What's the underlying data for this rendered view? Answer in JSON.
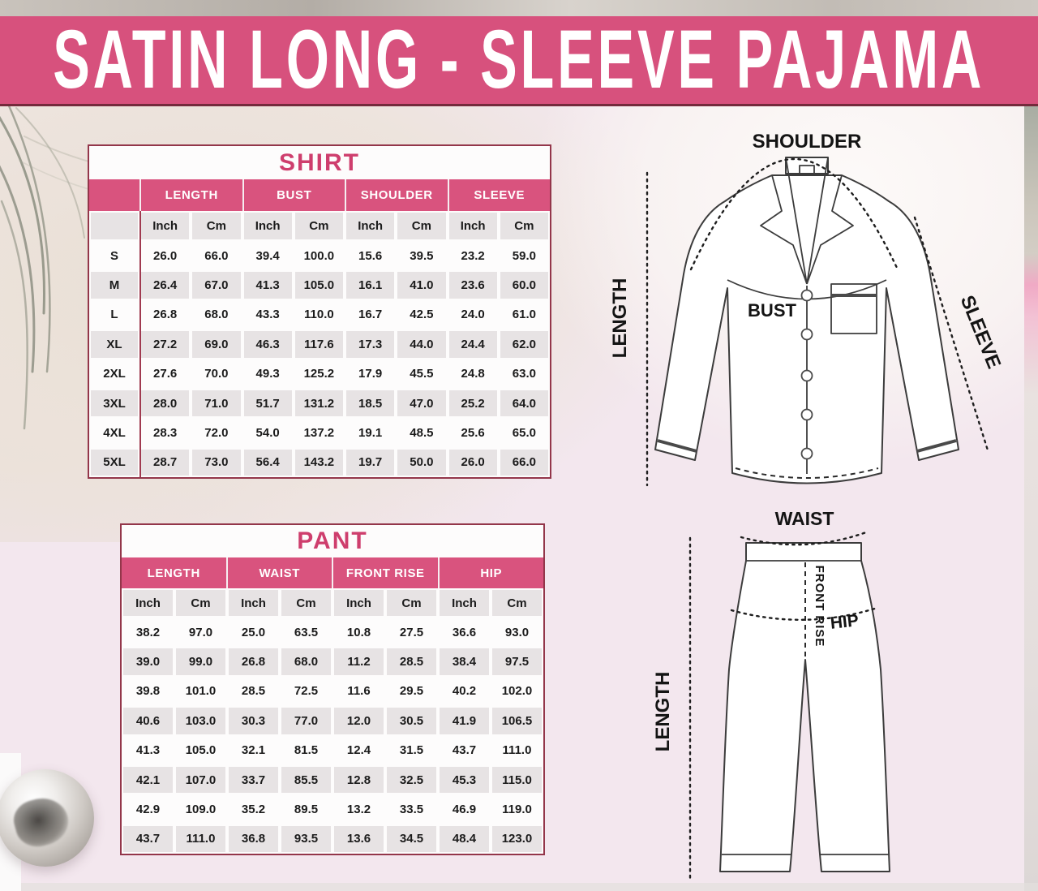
{
  "banner": {
    "title": "SATIN LONG - SLEEVE PAJAMA"
  },
  "shirt_table": {
    "title": "SHIRT",
    "groups": [
      "LENGTH",
      "BUST",
      "SHOULDER",
      "SLEEVE"
    ],
    "units": [
      "Inch",
      "Cm"
    ],
    "sizes": [
      "S",
      "M",
      "L",
      "XL",
      "2XL",
      "3XL",
      "4XL",
      "5XL"
    ],
    "rows": [
      [
        "26.0",
        "66.0",
        "39.4",
        "100.0",
        "15.6",
        "39.5",
        "23.2",
        "59.0"
      ],
      [
        "26.4",
        "67.0",
        "41.3",
        "105.0",
        "16.1",
        "41.0",
        "23.6",
        "60.0"
      ],
      [
        "26.8",
        "68.0",
        "43.3",
        "110.0",
        "16.7",
        "42.5",
        "24.0",
        "61.0"
      ],
      [
        "27.2",
        "69.0",
        "46.3",
        "117.6",
        "17.3",
        "44.0",
        "24.4",
        "62.0"
      ],
      [
        "27.6",
        "70.0",
        "49.3",
        "125.2",
        "17.9",
        "45.5",
        "24.8",
        "63.0"
      ],
      [
        "28.0",
        "71.0",
        "51.7",
        "131.2",
        "18.5",
        "47.0",
        "25.2",
        "64.0"
      ],
      [
        "28.3",
        "72.0",
        "54.0",
        "137.2",
        "19.1",
        "48.5",
        "25.6",
        "65.0"
      ],
      [
        "28.7",
        "73.0",
        "56.4",
        "143.2",
        "19.7",
        "50.0",
        "26.0",
        "66.0"
      ]
    ]
  },
  "pant_table": {
    "title": "PANT",
    "groups": [
      "LENGTH",
      "WAIST",
      "FRONT RISE",
      "HIP"
    ],
    "units": [
      "Inch",
      "Cm"
    ],
    "rows": [
      [
        "38.2",
        "97.0",
        "25.0",
        "63.5",
        "10.8",
        "27.5",
        "36.6",
        "93.0"
      ],
      [
        "39.0",
        "99.0",
        "26.8",
        "68.0",
        "11.2",
        "28.5",
        "38.4",
        "97.5"
      ],
      [
        "39.8",
        "101.0",
        "28.5",
        "72.5",
        "11.6",
        "29.5",
        "40.2",
        "102.0"
      ],
      [
        "40.6",
        "103.0",
        "30.3",
        "77.0",
        "12.0",
        "30.5",
        "41.9",
        "106.5"
      ],
      [
        "41.3",
        "105.0",
        "32.1",
        "81.5",
        "12.4",
        "31.5",
        "43.7",
        "111.0"
      ],
      [
        "42.1",
        "107.0",
        "33.7",
        "85.5",
        "12.8",
        "32.5",
        "45.3",
        "115.0"
      ],
      [
        "42.9",
        "109.0",
        "35.2",
        "89.5",
        "13.2",
        "33.5",
        "46.9",
        "119.0"
      ],
      [
        "43.7",
        "111.0",
        "36.8",
        "93.5",
        "13.6",
        "34.5",
        "48.4",
        "123.0"
      ]
    ]
  },
  "shirt_diagram": {
    "shoulder": "SHOULDER",
    "length": "LENGTH",
    "sleeve": "SLEEVE",
    "bust": "BUST"
  },
  "pant_diagram": {
    "waist": "WAIST",
    "front_rise": "FRONT RISE",
    "hip": "HIP",
    "length": "LENGTH"
  },
  "colors": {
    "banner_pink": "#d7517d",
    "header_pink": "#d9537e",
    "title_pink": "#ce3e6d",
    "maroon_border": "#93364a",
    "cell_gray": "#e7e3e4"
  }
}
